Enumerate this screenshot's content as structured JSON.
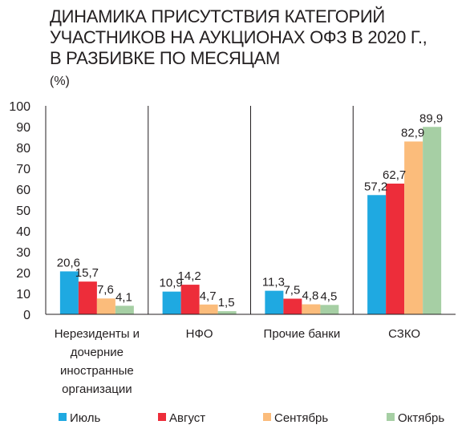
{
  "title": "ДИНАМИКА ПРИСУТСТВИЯ КАТЕГОРИЙ\nУЧАСТНИКОВ НА АУКЦИОНАХ ОФЗ В 2020 Г.,\nВ РАЗБИВКЕ ПО МЕСЯЦАМ",
  "unit": "(%)",
  "chart_data": {
    "type": "bar",
    "title": "ДИНАМИКА ПРИСУТСТВИЯ КАТЕГОРИЙ УЧАСТНИКОВ НА АУКЦИОНАХ ОФЗ В 2020 Г., В РАЗБИВКЕ ПО МЕСЯЦАМ",
    "ylabel": "(%)",
    "ylim": [
      0,
      100
    ],
    "yticks": [
      0,
      10,
      20,
      30,
      40,
      50,
      60,
      70,
      80,
      90,
      100
    ],
    "grid": false,
    "legend_position": "bottom",
    "categories": [
      [
        "Нерезиденты и",
        "дочерние",
        "иностранные",
        "организации"
      ],
      [
        "НФО"
      ],
      [
        "Прочие банки"
      ],
      [
        "СЗКО"
      ]
    ],
    "series": [
      {
        "name": "Июль",
        "color": "#1fa9e1",
        "values": [
          20.6,
          10.9,
          11.3,
          57.2
        ],
        "labels": [
          "20,6",
          "10,9",
          "11,3",
          "57,2"
        ]
      },
      {
        "name": "Август",
        "color": "#ed2d3a",
        "values": [
          15.7,
          14.2,
          7.5,
          62.7
        ],
        "labels": [
          "15,7",
          "14,2",
          "7,5",
          "62,7"
        ]
      },
      {
        "name": "Сентябрь",
        "color": "#fbbc7b",
        "values": [
          7.6,
          4.7,
          4.8,
          82.9
        ],
        "labels": [
          "7,6",
          "4,7",
          "4,8",
          "82,9"
        ]
      },
      {
        "name": "Октябрь",
        "color": "#a6cfa4",
        "values": [
          4.1,
          1.5,
          4.5,
          89.9
        ],
        "labels": [
          "4,1",
          "1,5",
          "4,5",
          "89,9"
        ]
      }
    ]
  }
}
